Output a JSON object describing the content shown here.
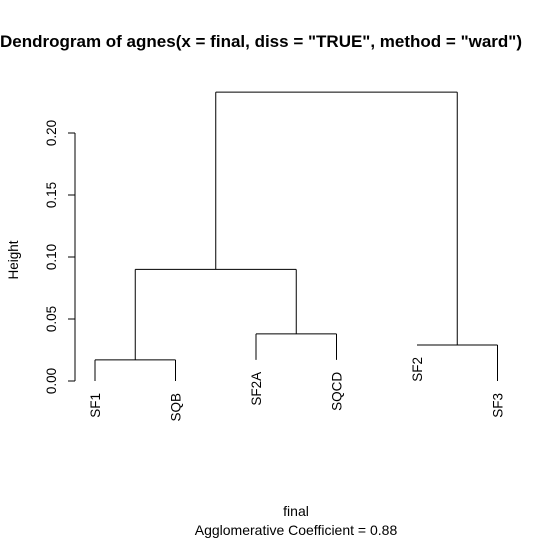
{
  "title": "Dendrogram of  agnes(x = final, diss = \"TRUE\", method = \"ward\")",
  "ylabel": "Height",
  "xlabel": "final",
  "subtitle": "Agglomerative Coefficient =  0.88",
  "yaxis": {
    "range": [
      0,
      0.235
    ],
    "ticks": [
      {
        "value": 0.0,
        "label": "0.00"
      },
      {
        "value": 0.05,
        "label": "0.05"
      },
      {
        "value": 0.1,
        "label": "0.10"
      },
      {
        "value": 0.15,
        "label": "0.15"
      },
      {
        "value": 0.2,
        "label": "0.20"
      }
    ]
  },
  "leaves": [
    "SF1",
    "SQB",
    "SF2A",
    "SQCD",
    "SF2",
    "SF3"
  ],
  "colors": {
    "line": "#000000",
    "background": "#ffffff"
  },
  "chart_data": {
    "type": "dendrogram",
    "leaves": [
      "SF1",
      "SQB",
      "SF2A",
      "SQCD",
      "SF2",
      "SF3"
    ],
    "merges": [
      {
        "id": "m1",
        "left": "SF1",
        "right": "SQB",
        "height": 0.017
      },
      {
        "id": "m2",
        "left": "SF2A",
        "right": "SQCD",
        "height": 0.038
      },
      {
        "id": "m3",
        "left": "SF2",
        "right": "SF3",
        "height": 0.029
      },
      {
        "id": "m4",
        "left": "m1",
        "right": "m2",
        "height": 0.09
      },
      {
        "id": "m5",
        "left": "m4",
        "right": "m3",
        "height": 0.233
      }
    ],
    "leaf_heights": {
      "SF1": 0.0,
      "SQB": 0.0,
      "SF2A": 0.017,
      "SQCD": 0.017,
      "SF2": 0.029,
      "SF3": 0.0
    },
    "ylabel": "Height",
    "xlabel": "final",
    "ylim": [
      0,
      0.235
    ]
  }
}
